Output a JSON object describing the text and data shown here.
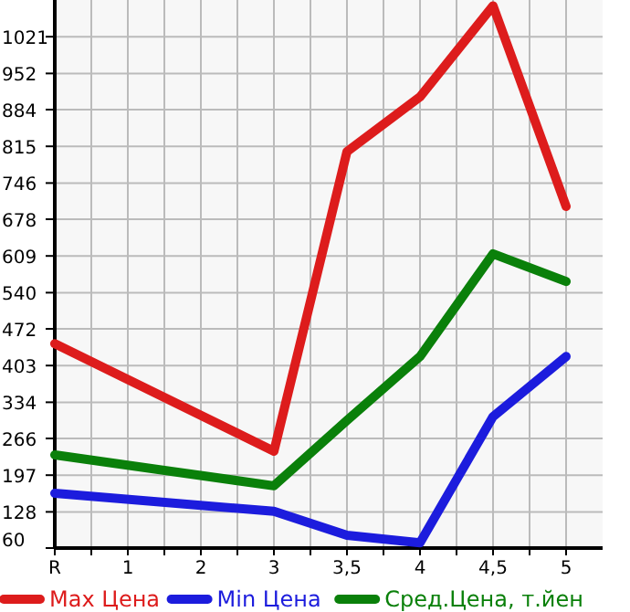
{
  "chart_data": {
    "type": "line",
    "categories": [
      "R",
      "1",
      "2",
      "3",
      "3,5",
      "4",
      "4,5",
      "5"
    ],
    "series": [
      {
        "name": "Max Цена",
        "color": "#dd1c1c",
        "values": [
          444,
          null,
          null,
          242,
          805,
          908,
          1079,
          702
        ]
      },
      {
        "name": "Min Цена",
        "color": "#1c1cdd",
        "values": [
          163,
          null,
          null,
          129,
          84,
          70,
          307,
          420
        ]
      },
      {
        "name": "Сред.Цена, т.йен",
        "color": "#0a800a",
        "values": [
          235,
          null,
          null,
          177,
          300,
          420,
          613,
          561
        ]
      }
    ],
    "ylim": [
      60,
      1090
    ],
    "yticks": [
      60,
      128,
      197,
      266,
      334,
      403,
      472,
      540,
      609,
      678,
      746,
      815,
      884,
      952,
      1021
    ],
    "grid": true,
    "legend": "bottom",
    "marker": "none",
    "line_style": "solid"
  }
}
